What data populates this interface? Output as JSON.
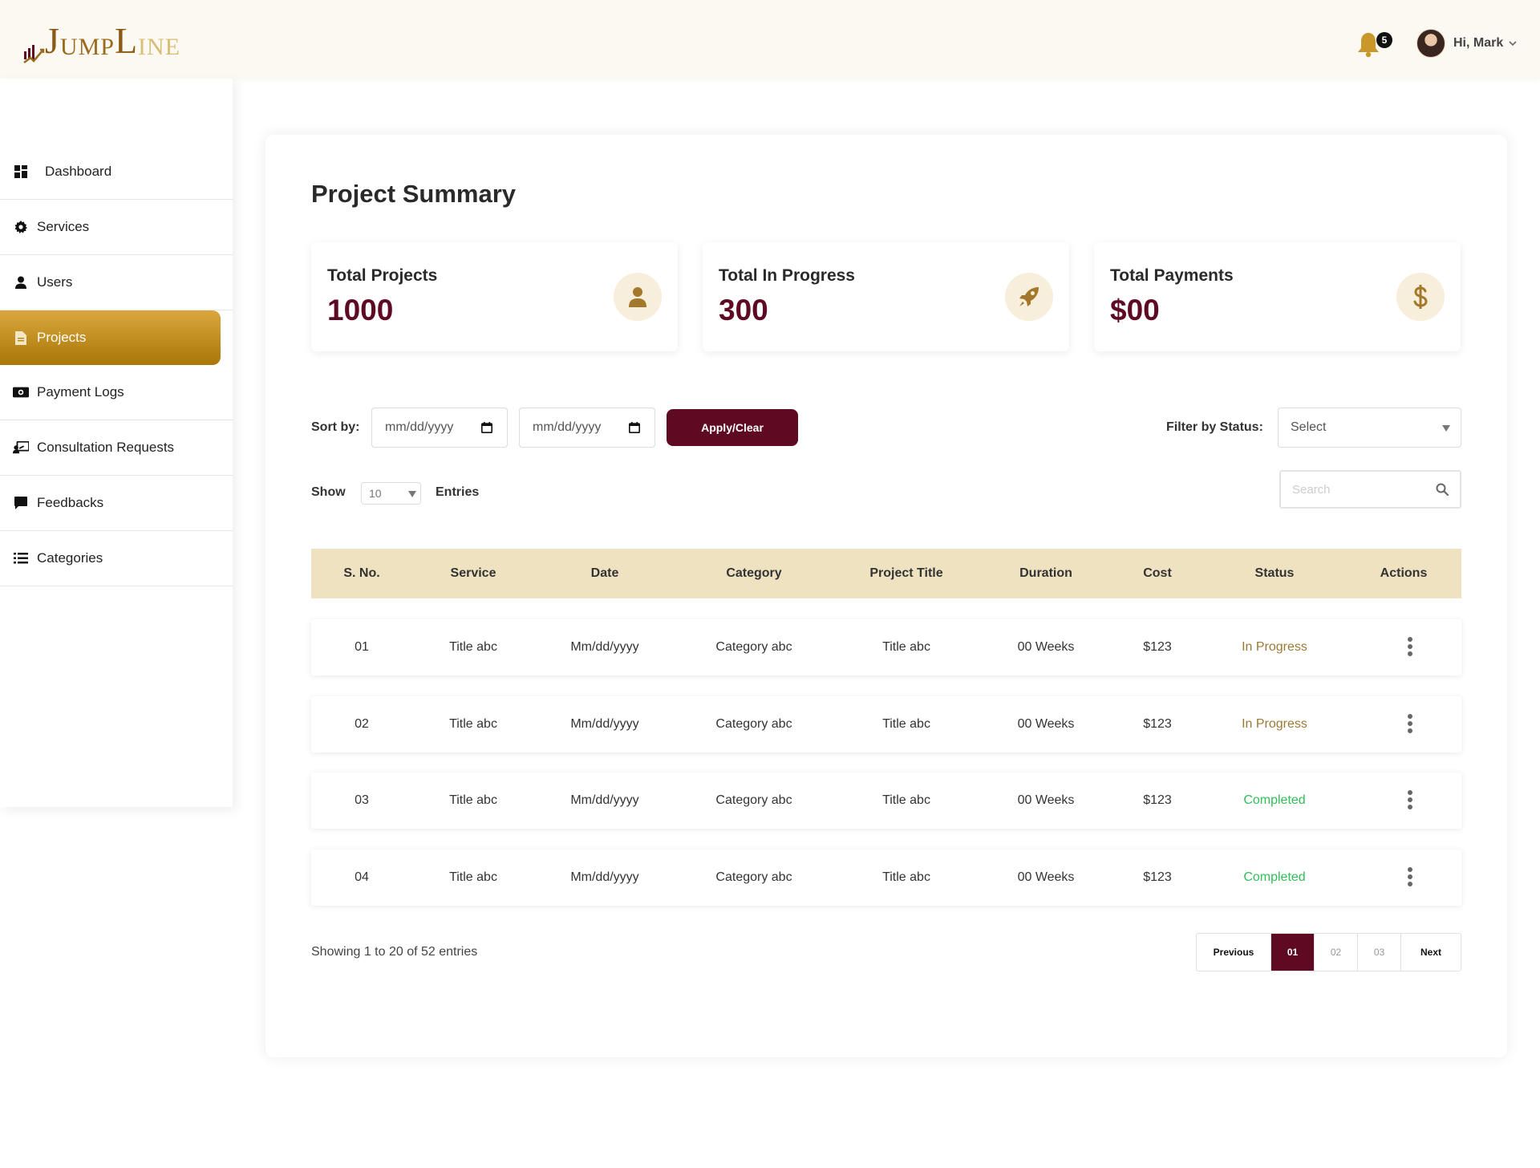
{
  "brand": {
    "logo_first": "J",
    "logo_mid": "UMP",
    "logo_big_l": "L",
    "logo_end": "INE",
    "gold": "#c9972a",
    "maroon": "#5e0a23"
  },
  "header": {
    "notification_count": "5",
    "greeting": "Hi, Mark"
  },
  "sidebar": {
    "items": [
      {
        "label": "Dashboard",
        "icon": "dashboard-grid-icon"
      },
      {
        "label": "Services",
        "icon": "gear-icon"
      },
      {
        "label": "Users",
        "icon": "user-icon"
      },
      {
        "label": "Projects",
        "icon": "document-icon",
        "active": true
      },
      {
        "label": "Payment Logs",
        "icon": "money-icon"
      },
      {
        "label": "Consultation Requests",
        "icon": "consultation-icon"
      },
      {
        "label": "Feedbacks",
        "icon": "chat-icon"
      },
      {
        "label": "Categories",
        "icon": "list-icon"
      }
    ]
  },
  "main": {
    "title": "Project Summary",
    "stats": [
      {
        "label": "Total Projects",
        "value": "1000",
        "icon": "user-icon"
      },
      {
        "label": "Total In Progress",
        "value": "300",
        "icon": "rocket-icon"
      },
      {
        "label": "Total Payments",
        "value": "$00",
        "icon": "dollar-icon"
      }
    ],
    "filters": {
      "sort_label": "Sort by:",
      "date_from_placeholder": "mm/dd/yyyy",
      "date_to_placeholder": "mm/dd/yyyy",
      "apply_label": "Apply/Clear",
      "status_label": "Filter by Status:",
      "status_value": "Select",
      "show_label": "Show",
      "show_value": "10",
      "entries_label": "Entries",
      "search_placeholder": "Search"
    },
    "table": {
      "columns": [
        "S. No.",
        "Service",
        "Date",
        "Category",
        "Project Title",
        "Duration",
        "Cost",
        "Status",
        "Actions"
      ],
      "rows": [
        {
          "sno": "01",
          "service": "Title abc",
          "date": "Mm/dd/yyyy",
          "category": "Category abc",
          "title": "Title abc",
          "duration": "00 Weeks",
          "cost": "$123",
          "status": "In Progress",
          "status_color": "#9c7a36"
        },
        {
          "sno": "02",
          "service": "Title abc",
          "date": "Mm/dd/yyyy",
          "category": "Category abc",
          "title": "Title abc",
          "duration": "00 Weeks",
          "cost": "$123",
          "status": "In Progress",
          "status_color": "#9c7a36"
        },
        {
          "sno": "03",
          "service": "Title abc",
          "date": "Mm/dd/yyyy",
          "category": "Category abc",
          "title": "Title abc",
          "duration": "00 Weeks",
          "cost": "$123",
          "status": "Completed",
          "status_color": "#2fbf57"
        },
        {
          "sno": "04",
          "service": "Title abc",
          "date": "Mm/dd/yyyy",
          "category": "Category abc",
          "title": "Title abc",
          "duration": "00 Weeks",
          "cost": "$123",
          "status": "Completed",
          "status_color": "#2fbf57"
        }
      ]
    },
    "footer": {
      "showing": "Showing 1 to 20 of 52 entries",
      "pagination": {
        "previous": "Previous",
        "pages": [
          "01",
          "02",
          "03"
        ],
        "current": "01",
        "next": "Next"
      }
    }
  }
}
